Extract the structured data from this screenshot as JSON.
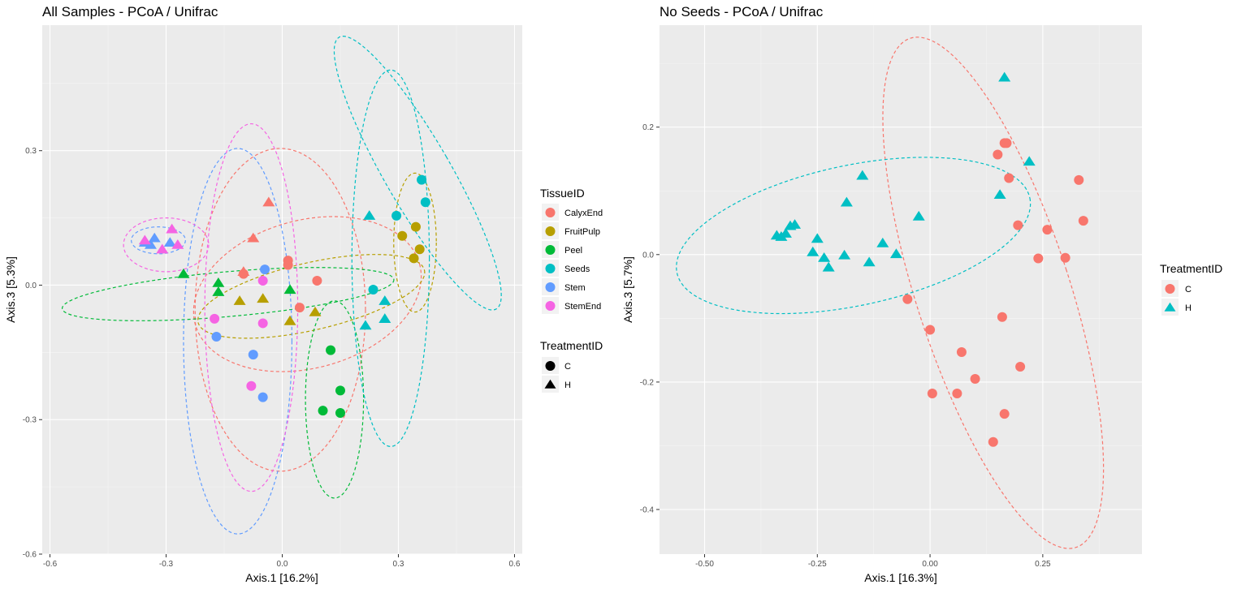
{
  "chart_data": [
    {
      "type": "scatter",
      "title": "All Samples - PCoA / Unifrac",
      "xlabel": "Axis.1   [16.2%]",
      "ylabel": "Axis.3   [5.3%]",
      "xlim": [
        -0.62,
        0.62
      ],
      "ylim": [
        -0.6,
        0.58
      ],
      "xticks": [
        -0.6,
        -0.3,
        0.0,
        0.3,
        0.6
      ],
      "yticks": [
        -0.6,
        -0.3,
        0.0,
        0.3
      ],
      "xtick_labels": [
        "-0.6",
        "-0.3",
        "0.0",
        "0.3",
        "0.6"
      ],
      "ytick_labels": [
        "-0.6",
        "-0.3",
        "0.0",
        "0.3"
      ],
      "legends": [
        {
          "title": "TissueID",
          "items": [
            {
              "label": "CalyxEnd",
              "color": "#F8766D"
            },
            {
              "label": "FruitPulp",
              "color": "#B79F00"
            },
            {
              "label": "Peel",
              "color": "#00BA38"
            },
            {
              "label": "Seeds",
              "color": "#00BFC4"
            },
            {
              "label": "Stem",
              "color": "#619CFF"
            },
            {
              "label": "StemEnd",
              "color": "#F564E3"
            }
          ]
        },
        {
          "title": "TreatmentID",
          "items": [
            {
              "label": "C",
              "shape": "circle"
            },
            {
              "label": "H",
              "shape": "triangle"
            }
          ]
        }
      ],
      "points": [
        {
          "x": -0.1,
          "y": 0.025,
          "group": "CalyxEnd",
          "treatment": "C"
        },
        {
          "x": 0.015,
          "y": 0.055,
          "group": "CalyxEnd",
          "treatment": "C"
        },
        {
          "x": 0.015,
          "y": 0.045,
          "group": "CalyxEnd",
          "treatment": "C"
        },
        {
          "x": 0.09,
          "y": 0.01,
          "group": "CalyxEnd",
          "treatment": "C"
        },
        {
          "x": 0.045,
          "y": -0.05,
          "group": "CalyxEnd",
          "treatment": "C"
        },
        {
          "x": -0.035,
          "y": 0.185,
          "group": "CalyxEnd",
          "treatment": "H"
        },
        {
          "x": -0.075,
          "y": 0.105,
          "group": "CalyxEnd",
          "treatment": "H"
        },
        {
          "x": -0.1,
          "y": 0.03,
          "group": "CalyxEnd",
          "treatment": "H"
        },
        {
          "x": 0.31,
          "y": 0.11,
          "group": "FruitPulp",
          "treatment": "C"
        },
        {
          "x": 0.345,
          "y": 0.13,
          "group": "FruitPulp",
          "treatment": "C"
        },
        {
          "x": 0.355,
          "y": 0.08,
          "group": "FruitPulp",
          "treatment": "C"
        },
        {
          "x": 0.34,
          "y": 0.06,
          "group": "FruitPulp",
          "treatment": "C"
        },
        {
          "x": -0.05,
          "y": -0.03,
          "group": "FruitPulp",
          "treatment": "H"
        },
        {
          "x": -0.11,
          "y": -0.035,
          "group": "FruitPulp",
          "treatment": "H"
        },
        {
          "x": 0.085,
          "y": -0.06,
          "group": "FruitPulp",
          "treatment": "H"
        },
        {
          "x": 0.02,
          "y": -0.08,
          "group": "FruitPulp",
          "treatment": "H"
        },
        {
          "x": 0.125,
          "y": -0.145,
          "group": "Peel",
          "treatment": "C"
        },
        {
          "x": 0.15,
          "y": -0.235,
          "group": "Peel",
          "treatment": "C"
        },
        {
          "x": 0.105,
          "y": -0.28,
          "group": "Peel",
          "treatment": "C"
        },
        {
          "x": 0.15,
          "y": -0.285,
          "group": "Peel",
          "treatment": "C"
        },
        {
          "x": -0.255,
          "y": 0.025,
          "group": "Peel",
          "treatment": "H"
        },
        {
          "x": -0.165,
          "y": 0.005,
          "group": "Peel",
          "treatment": "H"
        },
        {
          "x": -0.165,
          "y": -0.015,
          "group": "Peel",
          "treatment": "H"
        },
        {
          "x": 0.02,
          "y": -0.01,
          "group": "Peel",
          "treatment": "H"
        },
        {
          "x": 0.36,
          "y": 0.235,
          "group": "Seeds",
          "treatment": "C"
        },
        {
          "x": 0.37,
          "y": 0.185,
          "group": "Seeds",
          "treatment": "C"
        },
        {
          "x": 0.295,
          "y": 0.155,
          "group": "Seeds",
          "treatment": "C"
        },
        {
          "x": 0.235,
          "y": -0.01,
          "group": "Seeds",
          "treatment": "C"
        },
        {
          "x": 0.225,
          "y": 0.155,
          "group": "Seeds",
          "treatment": "H"
        },
        {
          "x": 0.265,
          "y": -0.035,
          "group": "Seeds",
          "treatment": "H"
        },
        {
          "x": 0.265,
          "y": -0.075,
          "group": "Seeds",
          "treatment": "H"
        },
        {
          "x": 0.215,
          "y": -0.09,
          "group": "Seeds",
          "treatment": "H"
        },
        {
          "x": -0.045,
          "y": 0.035,
          "group": "Stem",
          "treatment": "C"
        },
        {
          "x": -0.17,
          "y": -0.115,
          "group": "Stem",
          "treatment": "C"
        },
        {
          "x": -0.075,
          "y": -0.155,
          "group": "Stem",
          "treatment": "C"
        },
        {
          "x": -0.05,
          "y": -0.25,
          "group": "Stem",
          "treatment": "C"
        },
        {
          "x": -0.33,
          "y": 0.105,
          "group": "Stem",
          "treatment": "H"
        },
        {
          "x": -0.29,
          "y": 0.095,
          "group": "Stem",
          "treatment": "H"
        },
        {
          "x": -0.355,
          "y": 0.095,
          "group": "Stem",
          "treatment": "H"
        },
        {
          "x": -0.34,
          "y": 0.09,
          "group": "Stem",
          "treatment": "H"
        },
        {
          "x": -0.05,
          "y": 0.01,
          "group": "StemEnd",
          "treatment": "C"
        },
        {
          "x": -0.175,
          "y": -0.075,
          "group": "StemEnd",
          "treatment": "C"
        },
        {
          "x": -0.05,
          "y": -0.085,
          "group": "StemEnd",
          "treatment": "C"
        },
        {
          "x": -0.08,
          "y": -0.225,
          "group": "StemEnd",
          "treatment": "C"
        },
        {
          "x": -0.285,
          "y": 0.125,
          "group": "StemEnd",
          "treatment": "H"
        },
        {
          "x": -0.355,
          "y": 0.1,
          "group": "StemEnd",
          "treatment": "H"
        },
        {
          "x": -0.31,
          "y": 0.08,
          "group": "StemEnd",
          "treatment": "H"
        },
        {
          "x": -0.27,
          "y": 0.09,
          "group": "StemEnd",
          "treatment": "H"
        }
      ],
      "ellipses": [
        {
          "group": "CalyxEnd",
          "center": [
            -0.005,
            -0.055
          ],
          "semi_axes": [
            0.22,
            0.36
          ],
          "angle_deg": 0
        },
        {
          "group": "CalyxEnd",
          "center": [
            0.065,
            -0.02
          ],
          "semi_axes": [
            0.3,
            0.165
          ],
          "angle_deg": -15
        },
        {
          "group": "FruitPulp",
          "center": [
            0.075,
            -0.025
          ],
          "semi_axes": [
            0.3,
            0.075
          ],
          "angle_deg": -13
        },
        {
          "group": "FruitPulp",
          "center": [
            0.343,
            0.095
          ],
          "semi_axes": [
            0.055,
            0.155
          ],
          "angle_deg": 0
        },
        {
          "group": "Peel",
          "center": [
            -0.14,
            -0.02
          ],
          "semi_axes": [
            0.43,
            0.05
          ],
          "angle_deg": -5
        },
        {
          "group": "Peel",
          "center": [
            0.135,
            -0.255
          ],
          "semi_axes": [
            0.075,
            0.22
          ],
          "angle_deg": 0
        },
        {
          "group": "Seeds",
          "center": [
            0.28,
            0.06
          ],
          "semi_axes": [
            0.1,
            0.42
          ],
          "angle_deg": 0
        },
        {
          "group": "Seeds",
          "center": [
            0.35,
            0.25
          ],
          "semi_axes": [
            0.085,
            0.35
          ],
          "angle_deg": -30
        },
        {
          "group": "Stem",
          "center": [
            -0.115,
            -0.125
          ],
          "semi_axes": [
            0.14,
            0.43
          ],
          "angle_deg": 0
        },
        {
          "group": "Stem",
          "center": [
            -0.32,
            0.1
          ],
          "semi_axes": [
            0.07,
            0.03
          ],
          "angle_deg": 0
        },
        {
          "group": "StemEnd",
          "center": [
            -0.08,
            -0.05
          ],
          "semi_axes": [
            0.12,
            0.41
          ],
          "angle_deg": 0
        },
        {
          "group": "StemEnd",
          "center": [
            -0.3,
            0.09
          ],
          "semi_axes": [
            0.11,
            0.06
          ],
          "angle_deg": 0
        }
      ]
    },
    {
      "type": "scatter",
      "title": "No Seeds - PCoA / Unifrac",
      "xlabel": "Axis.1   [16.3%]",
      "ylabel": "Axis.3   [5.7%]",
      "xlim": [
        -0.6,
        0.47
      ],
      "ylim": [
        -0.47,
        0.36
      ],
      "xticks": [
        -0.5,
        -0.25,
        0.0,
        0.25
      ],
      "yticks": [
        -0.4,
        -0.2,
        0.0,
        0.2
      ],
      "xtick_labels": [
        "-0.50",
        "-0.25",
        "0.00",
        "0.25"
      ],
      "ytick_labels": [
        "-0.4",
        "-0.2",
        "0.0",
        "0.2"
      ],
      "legends": [
        {
          "title": "TreatmentID",
          "items": [
            {
              "label": "C",
              "color": "#F8766D",
              "shape": "circle"
            },
            {
              "label": "H",
              "color": "#00BFC4",
              "shape": "triangle"
            }
          ]
        }
      ],
      "points": [
        {
          "x": 0.165,
          "y": 0.175,
          "group": "C"
        },
        {
          "x": 0.17,
          "y": 0.175,
          "group": "C"
        },
        {
          "x": 0.15,
          "y": 0.157,
          "group": "C"
        },
        {
          "x": 0.175,
          "y": 0.12,
          "group": "C"
        },
        {
          "x": 0.33,
          "y": 0.117,
          "group": "C"
        },
        {
          "x": 0.34,
          "y": 0.053,
          "group": "C"
        },
        {
          "x": 0.195,
          "y": 0.046,
          "group": "C"
        },
        {
          "x": 0.26,
          "y": 0.039,
          "group": "C"
        },
        {
          "x": 0.24,
          "y": -0.006,
          "group": "C"
        },
        {
          "x": 0.3,
          "y": -0.005,
          "group": "C"
        },
        {
          "x": -0.05,
          "y": -0.07,
          "group": "C"
        },
        {
          "x": 0.0,
          "y": -0.118,
          "group": "C"
        },
        {
          "x": 0.16,
          "y": -0.098,
          "group": "C"
        },
        {
          "x": 0.07,
          "y": -0.153,
          "group": "C"
        },
        {
          "x": 0.1,
          "y": -0.195,
          "group": "C"
        },
        {
          "x": 0.2,
          "y": -0.176,
          "group": "C"
        },
        {
          "x": 0.005,
          "y": -0.218,
          "group": "C"
        },
        {
          "x": 0.06,
          "y": -0.218,
          "group": "C"
        },
        {
          "x": 0.165,
          "y": -0.25,
          "group": "C"
        },
        {
          "x": 0.14,
          "y": -0.294,
          "group": "C"
        },
        {
          "x": 0.165,
          "y": 0.278,
          "group": "H"
        },
        {
          "x": 0.22,
          "y": 0.146,
          "group": "H"
        },
        {
          "x": 0.155,
          "y": 0.094,
          "group": "H"
        },
        {
          "x": -0.15,
          "y": 0.124,
          "group": "H"
        },
        {
          "x": -0.185,
          "y": 0.082,
          "group": "H"
        },
        {
          "x": -0.025,
          "y": 0.06,
          "group": "H"
        },
        {
          "x": -0.3,
          "y": 0.047,
          "group": "H"
        },
        {
          "x": -0.31,
          "y": 0.045,
          "group": "H"
        },
        {
          "x": -0.32,
          "y": 0.033,
          "group": "H"
        },
        {
          "x": -0.34,
          "y": 0.03,
          "group": "H"
        },
        {
          "x": -0.33,
          "y": 0.028,
          "group": "H"
        },
        {
          "x": -0.25,
          "y": 0.025,
          "group": "H"
        },
        {
          "x": -0.26,
          "y": 0.004,
          "group": "H"
        },
        {
          "x": -0.105,
          "y": 0.018,
          "group": "H"
        },
        {
          "x": -0.19,
          "y": -0.001,
          "group": "H"
        },
        {
          "x": -0.235,
          "y": -0.005,
          "group": "H"
        },
        {
          "x": -0.075,
          "y": 0.001,
          "group": "H"
        },
        {
          "x": -0.135,
          "y": -0.012,
          "group": "H"
        },
        {
          "x": -0.225,
          "y": -0.02,
          "group": "H"
        }
      ],
      "ellipses": [
        {
          "group": "C",
          "center": [
            0.14,
            -0.06
          ],
          "semi_axes": [
            0.17,
            0.42
          ],
          "angle_deg": -18
        },
        {
          "group": "H",
          "center": [
            -0.17,
            0.03
          ],
          "semi_axes": [
            0.4,
            0.11
          ],
          "angle_deg": -12
        }
      ]
    }
  ]
}
